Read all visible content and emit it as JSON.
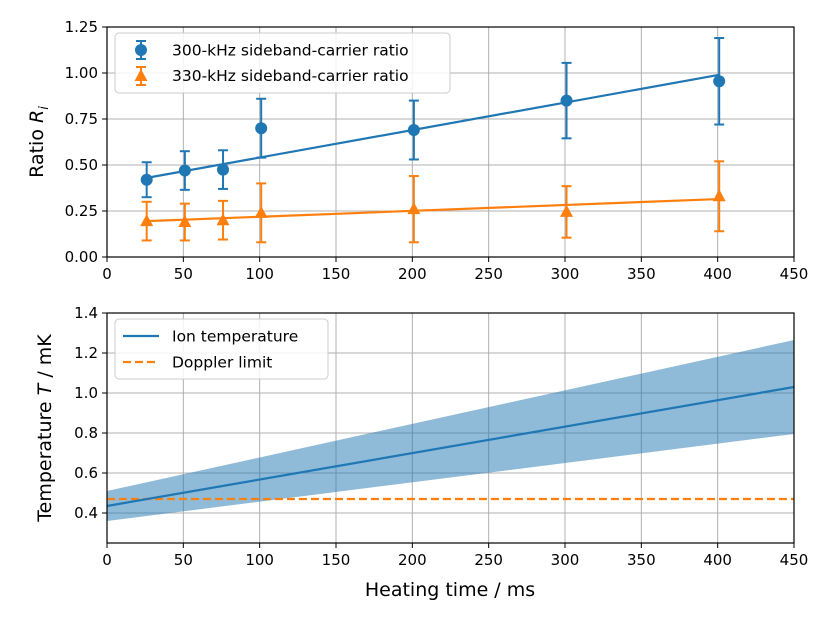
{
  "chart_data": [
    {
      "type": "scatter",
      "title": "",
      "xlabel": "",
      "ylabel_text": "Ratio ",
      "ylabel_symbol": "R",
      "ylabel_sub": "i",
      "xlim": [
        0,
        450
      ],
      "ylim": [
        0,
        1.25
      ],
      "xticks": [
        "0",
        "50",
        "100",
        "150",
        "200",
        "250",
        "300",
        "350",
        "400",
        "450"
      ],
      "yticks": [
        "0.00",
        "0.25",
        "0.50",
        "0.75",
        "1.00",
        "1.25"
      ],
      "grid": true,
      "legend_position": "top-left",
      "series": [
        {
          "name": "300-kHz sideband-carrier ratio",
          "marker": "circle",
          "color": "#1f77b4",
          "x": [
            26,
            51,
            76,
            101,
            201,
            301,
            401
          ],
          "y": [
            0.42,
            0.47,
            0.475,
            0.7,
            0.69,
            0.85,
            0.955
          ],
          "yerr": [
            0.095,
            0.105,
            0.105,
            0.16,
            0.16,
            0.205,
            0.235
          ],
          "fit": {
            "x": [
              26,
              401
            ],
            "y": [
              0.43,
              0.99
            ]
          }
        },
        {
          "name": "330-kHz sideband-carrier ratio",
          "marker": "triangle",
          "color": "#ff7f0e",
          "x": [
            26,
            51,
            76,
            101,
            201,
            301,
            401
          ],
          "y": [
            0.195,
            0.19,
            0.2,
            0.24,
            0.26,
            0.245,
            0.33
          ],
          "yerr": [
            0.105,
            0.1,
            0.105,
            0.16,
            0.18,
            0.14,
            0.19
          ],
          "fit": {
            "x": [
              26,
              401
            ],
            "y": [
              0.195,
              0.315
            ]
          }
        }
      ]
    },
    {
      "type": "line",
      "title": "",
      "xlabel": "Heating time / ms",
      "ylabel_text": "Temperature ",
      "ylabel_symbol": "T",
      "ylabel_unit": " / mK",
      "xlim": [
        0,
        450
      ],
      "ylim": [
        0.25,
        1.4
      ],
      "xticks": [
        "0",
        "50",
        "100",
        "150",
        "200",
        "250",
        "300",
        "350",
        "400",
        "450"
      ],
      "yticks": [
        "0.4",
        "0.6",
        "0.8",
        "1.0",
        "1.2",
        "1.4"
      ],
      "grid": true,
      "legend_position": "top-left",
      "series": [
        {
          "name": "Ion temperature",
          "style": "solid",
          "color": "#1f77b4",
          "x": [
            0,
            450
          ],
          "y": [
            0.435,
            1.03
          ],
          "band_lower": [
            0.36,
            0.795
          ],
          "band_upper": [
            0.51,
            1.265
          ]
        },
        {
          "name": "Doppler limit",
          "style": "dashed",
          "color": "#ff7f0e",
          "x": [
            0,
            450
          ],
          "y": [
            0.47,
            0.47
          ]
        }
      ]
    }
  ]
}
